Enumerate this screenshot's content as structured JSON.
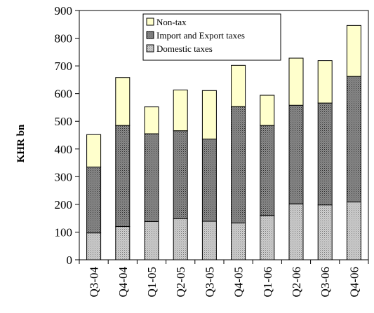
{
  "chart_data": {
    "type": "bar",
    "stacked": true,
    "categories": [
      "Q3-04",
      "Q4-04",
      "Q1-05",
      "Q2-05",
      "Q3-05",
      "Q4-05",
      "Q1-06",
      "Q2-06",
      "Q3-06",
      "Q4-06"
    ],
    "series": [
      {
        "name": "Domestic taxes",
        "values": [
          97,
          120,
          138,
          148,
          139,
          133,
          160,
          202,
          198,
          209
        ],
        "color": "#b8b8b8",
        "pattern": "dots-light"
      },
      {
        "name": "Import and Export taxes",
        "values": [
          238,
          365,
          317,
          318,
          297,
          420,
          325,
          356,
          368,
          453
        ],
        "color": "#8a8a8a",
        "pattern": "dots-dense"
      },
      {
        "name": "Non-tax",
        "values": [
          117,
          173,
          97,
          147,
          175,
          149,
          109,
          170,
          153,
          184
        ],
        "color": "#ffffcc",
        "pattern": "solid"
      }
    ],
    "ylabel": "KHR bn",
    "xlabel": "",
    "ylim": [
      0,
      900
    ],
    "yticks": [
      0,
      100,
      200,
      300,
      400,
      500,
      600,
      700,
      800,
      900
    ],
    "grid": false,
    "legend": {
      "position": "top-center",
      "order": [
        "Non-tax",
        "Import and Export taxes",
        "Domestic taxes"
      ]
    }
  }
}
